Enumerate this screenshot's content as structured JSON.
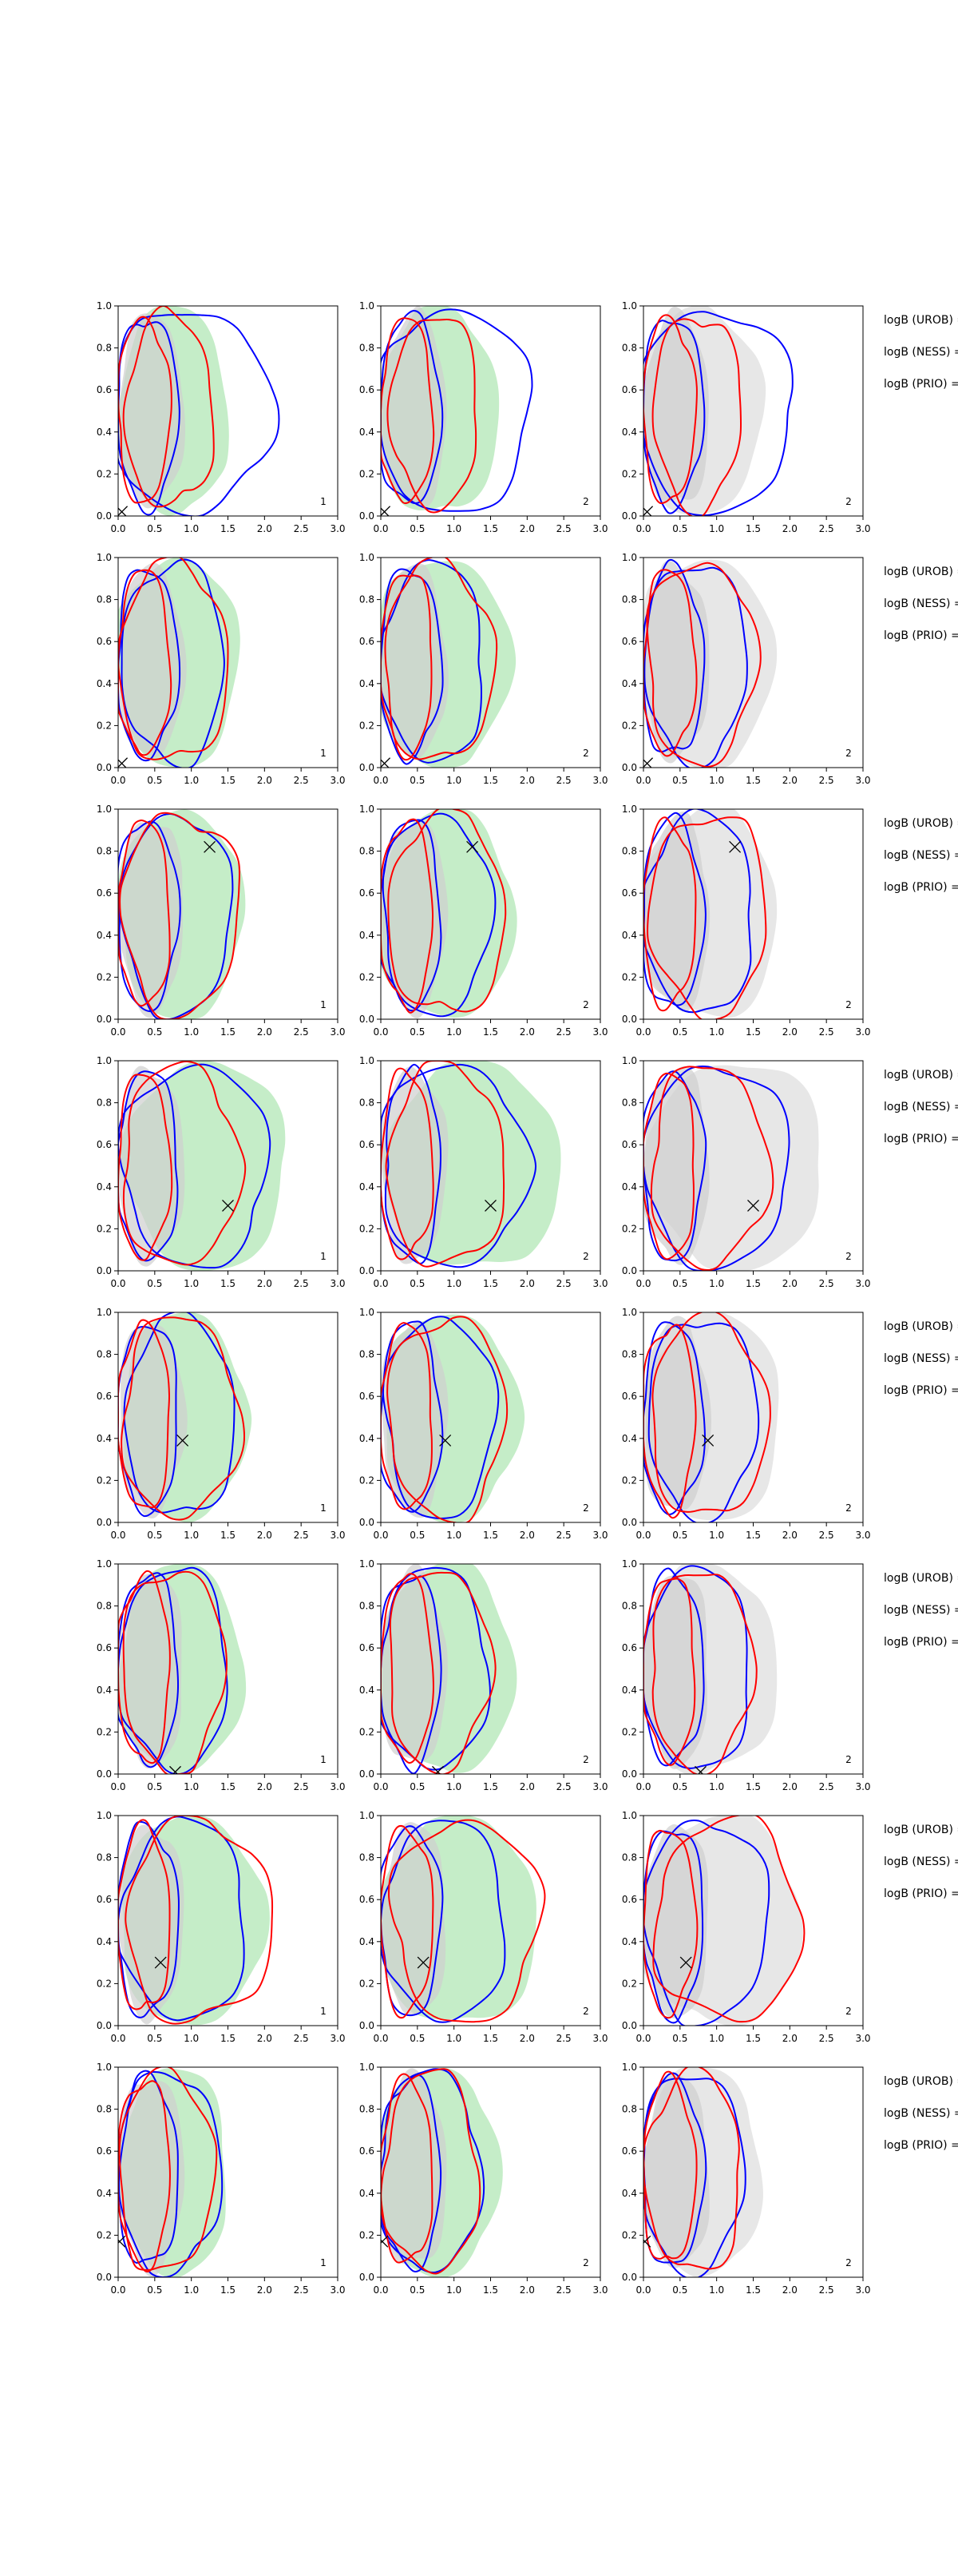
{
  "chart_data": [
    {
      "type": "contour",
      "rows": 8,
      "columns": 3,
      "x_ticks": [
        "0.0",
        "0.5",
        "1.0",
        "1.5",
        "2.0",
        "2.5",
        "3.0"
      ],
      "y_ticks": [
        "0.0",
        "0.2",
        "0.4",
        "0.6",
        "0.8",
        "1.0"
      ],
      "xlim": [
        0,
        3
      ],
      "ylim": [
        0,
        1
      ],
      "panel_tags": [
        "1",
        "2",
        "2"
      ],
      "panel_fill_colors": [
        "#c2ecc5",
        "#c2ecc5",
        "#e6e6e6"
      ],
      "inner_fill_color": "#cfcfcf",
      "line_colors": {
        "blue": "#0000ff",
        "red": "#ff0000"
      },
      "side_labels": [
        "logB (UROB) =",
        "logB (NESS) =",
        "logB (PRIO) ="
      ],
      "true_values": [
        {
          "x": 0.05,
          "y": 0.02
        },
        {
          "x": 0.05,
          "y": 0.02
        },
        {
          "x": 1.25,
          "y": 0.82
        },
        {
          "x": 1.5,
          "y": 0.31
        },
        {
          "x": 0.88,
          "y": 0.39
        },
        {
          "x": 0.78,
          "y": 0.01
        },
        {
          "x": 0.58,
          "y": 0.3
        },
        {
          "x": 0.02,
          "y": 0.17
        }
      ]
    }
  ]
}
